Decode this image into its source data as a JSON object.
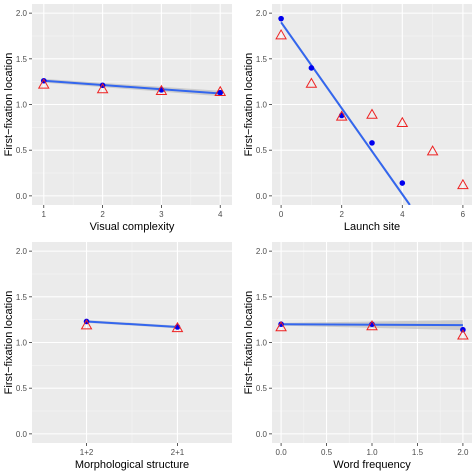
{
  "colors": {
    "panel_bg": "#ebebeb",
    "grid_major": "#ffffff",
    "grid_minor": "#f5f5f5",
    "observed_point": "#0000ee",
    "predicted_marker": "#ee2222",
    "fit_line": "#3366ee",
    "ribbon": "#b3b3b3"
  },
  "chart_data": [
    {
      "type": "scatter",
      "xlabel": "Visual complexity",
      "ylabel": "First−fixation location",
      "xlim": [
        0.8,
        4.2
      ],
      "ylim": [
        -0.1,
        2.1
      ],
      "x_ticks": [
        1,
        2,
        3,
        4
      ],
      "x_tick_labels": [
        "1",
        "2",
        "3",
        "4"
      ],
      "y_ticks": [
        0,
        0.5,
        1,
        1.5,
        2
      ],
      "y_tick_labels": [
        "0.0",
        "0.5",
        "1.0",
        "1.5",
        "2.0"
      ],
      "grid": true,
      "observed": {
        "x": [
          1,
          2,
          3,
          4
        ],
        "y": [
          1.26,
          1.21,
          1.16,
          1.13
        ]
      },
      "predicted": {
        "x": [
          1,
          2,
          3,
          4
        ],
        "y": [
          1.22,
          1.17,
          1.15,
          1.14
        ]
      },
      "fit": {
        "x": [
          1,
          4
        ],
        "y": [
          1.26,
          1.12
        ],
        "ci_halfwidth": [
          0.02,
          0.03
        ]
      }
    },
    {
      "type": "scatter",
      "xlabel": "Launch site",
      "ylabel": "First−fixation location",
      "xlim": [
        -0.3,
        6.3
      ],
      "ylim": [
        -0.1,
        2.1
      ],
      "x_ticks": [
        0,
        2,
        4,
        6
      ],
      "x_tick_labels": [
        "0",
        "2",
        "4",
        "6"
      ],
      "x_minor": [
        1,
        3,
        5
      ],
      "y_ticks": [
        0,
        0.5,
        1,
        1.5,
        2
      ],
      "y_tick_labels": [
        "0.0",
        "0.5",
        "1.0",
        "1.5",
        "2.0"
      ],
      "grid": true,
      "observed": {
        "x": [
          0,
          1,
          2,
          3,
          4
        ],
        "y": [
          1.94,
          1.4,
          0.88,
          0.58,
          0.14
        ]
      },
      "predicted": {
        "x": [
          0,
          1,
          2,
          3,
          4,
          5,
          6
        ],
        "y": [
          1.76,
          1.23,
          0.87,
          0.89,
          0.8,
          0.49,
          0.12
        ]
      },
      "fit": {
        "x": [
          0,
          4.25
        ],
        "y": [
          1.9,
          -0.1
        ],
        "ci_halfwidth": [
          0.02,
          0.02
        ]
      }
    },
    {
      "type": "scatter",
      "xlabel": "Morphological structure",
      "ylabel": "First−fixation location",
      "xlim": [
        0.4,
        2.6
      ],
      "ylim": [
        -0.1,
        2.1
      ],
      "categories": [
        "1+2",
        "2+1"
      ],
      "x_ticks": [
        1,
        2
      ],
      "x_tick_labels": [
        "1+2",
        "2+1"
      ],
      "y_ticks": [
        0,
        0.5,
        1,
        1.5,
        2
      ],
      "y_tick_labels": [
        "0.0",
        "0.5",
        "1.0",
        "1.5",
        "2.0"
      ],
      "grid": true,
      "observed": {
        "x": [
          1,
          2
        ],
        "y": [
          1.23,
          1.17
        ]
      },
      "predicted": {
        "x": [
          1,
          2
        ],
        "y": [
          1.19,
          1.16
        ]
      },
      "fit": {
        "x": [
          1,
          2
        ],
        "y": [
          1.23,
          1.17
        ],
        "ci_halfwidth": [
          0.015,
          0.015
        ]
      }
    },
    {
      "type": "scatter",
      "xlabel": "Word frequency",
      "ylabel": "First−fixation location",
      "xlim": [
        -0.1,
        2.1
      ],
      "ylim": [
        -0.1,
        2.1
      ],
      "x_ticks": [
        0,
        0.5,
        1,
        1.5,
        2
      ],
      "x_tick_labels": [
        "0.0",
        "0.5",
        "1.0",
        "1.5",
        "2.0"
      ],
      "y_ticks": [
        0,
        0.5,
        1,
        1.5,
        2
      ],
      "y_tick_labels": [
        "0.0",
        "0.5",
        "1.0",
        "1.5",
        "2.0"
      ],
      "grid": true,
      "observed": {
        "x": [
          0,
          1,
          2
        ],
        "y": [
          1.2,
          1.2,
          1.14
        ]
      },
      "predicted": {
        "x": [
          0,
          1,
          2
        ],
        "y": [
          1.17,
          1.18,
          1.08
        ]
      },
      "fit": {
        "x": [
          0,
          2
        ],
        "y": [
          1.2,
          1.19
        ],
        "ci_halfwidth": [
          0.015,
          0.055
        ]
      }
    }
  ]
}
